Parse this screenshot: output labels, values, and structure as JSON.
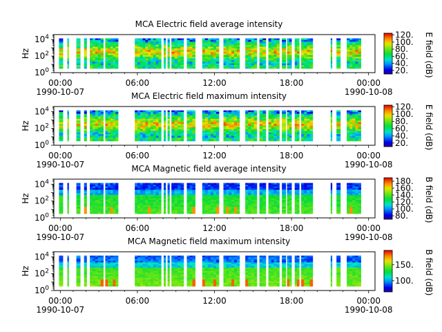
{
  "chart_data": [
    {
      "type": "heatmap",
      "title": "MCA  Electric field average intensity",
      "ylabel": "Hz",
      "colorbar_label": "E field (dB)",
      "colorbar_ticks": [
        "20.",
        "40.",
        "60.",
        "80.",
        "100.",
        "120."
      ],
      "colorbar_values": [
        20,
        40,
        60,
        80,
        100,
        120
      ],
      "clim": [
        10,
        125
      ],
      "pattern": "electric"
    },
    {
      "type": "heatmap",
      "title": "MCA  Electric field maximum intensity",
      "ylabel": "Hz",
      "colorbar_label": "E field (dB)",
      "colorbar_ticks": [
        "20.",
        "40.",
        "60.",
        "80.",
        "100.",
        "120."
      ],
      "colorbar_values": [
        20,
        40,
        60,
        80,
        100,
        120
      ],
      "clim": [
        10,
        125
      ],
      "pattern": "electric"
    },
    {
      "type": "heatmap",
      "title": "MCA  Magnetic field average intensity",
      "ylabel": "Hz",
      "colorbar_label": "B field (dB)",
      "colorbar_ticks": [
        "80.",
        "100.",
        "120.",
        "140.",
        "160.",
        "180."
      ],
      "colorbar_values": [
        80,
        100,
        120,
        140,
        160,
        180
      ],
      "clim": [
        70,
        190
      ],
      "pattern": "magnetic"
    },
    {
      "type": "heatmap",
      "title": "MCA  Magnetic field maximum intensity",
      "ylabel": "Hz",
      "colorbar_label": "B field (dB)",
      "colorbar_ticks": [
        "100.",
        "150."
      ],
      "colorbar_values": [
        100,
        150
      ],
      "clim": [
        65,
        195
      ],
      "pattern": "magnetic"
    }
  ],
  "shared_axes": {
    "x_ticks": [
      {
        "time": "00:00",
        "date": "1990-10-07",
        "hour": 0
      },
      {
        "time": "06:00",
        "date": "",
        "hour": 6
      },
      {
        "time": "12:00",
        "date": "",
        "hour": 12
      },
      {
        "time": "18:00",
        "date": "",
        "hour": 18
      },
      {
        "time": "00:00",
        "date": "1990-10-08",
        "hour": 24
      }
    ],
    "xlim_hours": [
      -0.5,
      24.5
    ],
    "y_ticks": [
      {
        "base": "10",
        "exp": "0",
        "value": 1
      },
      {
        "base": "10",
        "exp": "2",
        "value": 100
      },
      {
        "base": "10",
        "exp": "4",
        "value": 10000
      }
    ],
    "ylim": [
      1,
      40000
    ],
    "y_scale": "log",
    "data_intervals_hours": [
      [
        -0.1,
        0.2
      ],
      [
        0.55,
        0.65
      ],
      [
        1.25,
        1.55
      ],
      [
        1.85,
        2.05
      ],
      [
        2.3,
        3.35
      ],
      [
        3.5,
        4.5
      ],
      [
        5.8,
        7.85
      ],
      [
        8.05,
        8.2
      ],
      [
        8.35,
        8.5
      ],
      [
        8.65,
        9.6
      ],
      [
        9.85,
        10.5
      ],
      [
        11.05,
        12.35
      ],
      [
        12.7,
        13.95
      ],
      [
        14.4,
        15.3
      ],
      [
        15.5,
        16.0
      ],
      [
        16.2,
        17.05
      ],
      [
        17.25,
        17.55
      ],
      [
        17.65,
        18.0
      ],
      [
        18.25,
        18.6
      ],
      [
        18.75,
        19.65
      ],
      [
        21.05,
        21.15
      ],
      [
        21.5,
        21.8
      ],
      [
        22.3,
        23.4
      ]
    ]
  }
}
